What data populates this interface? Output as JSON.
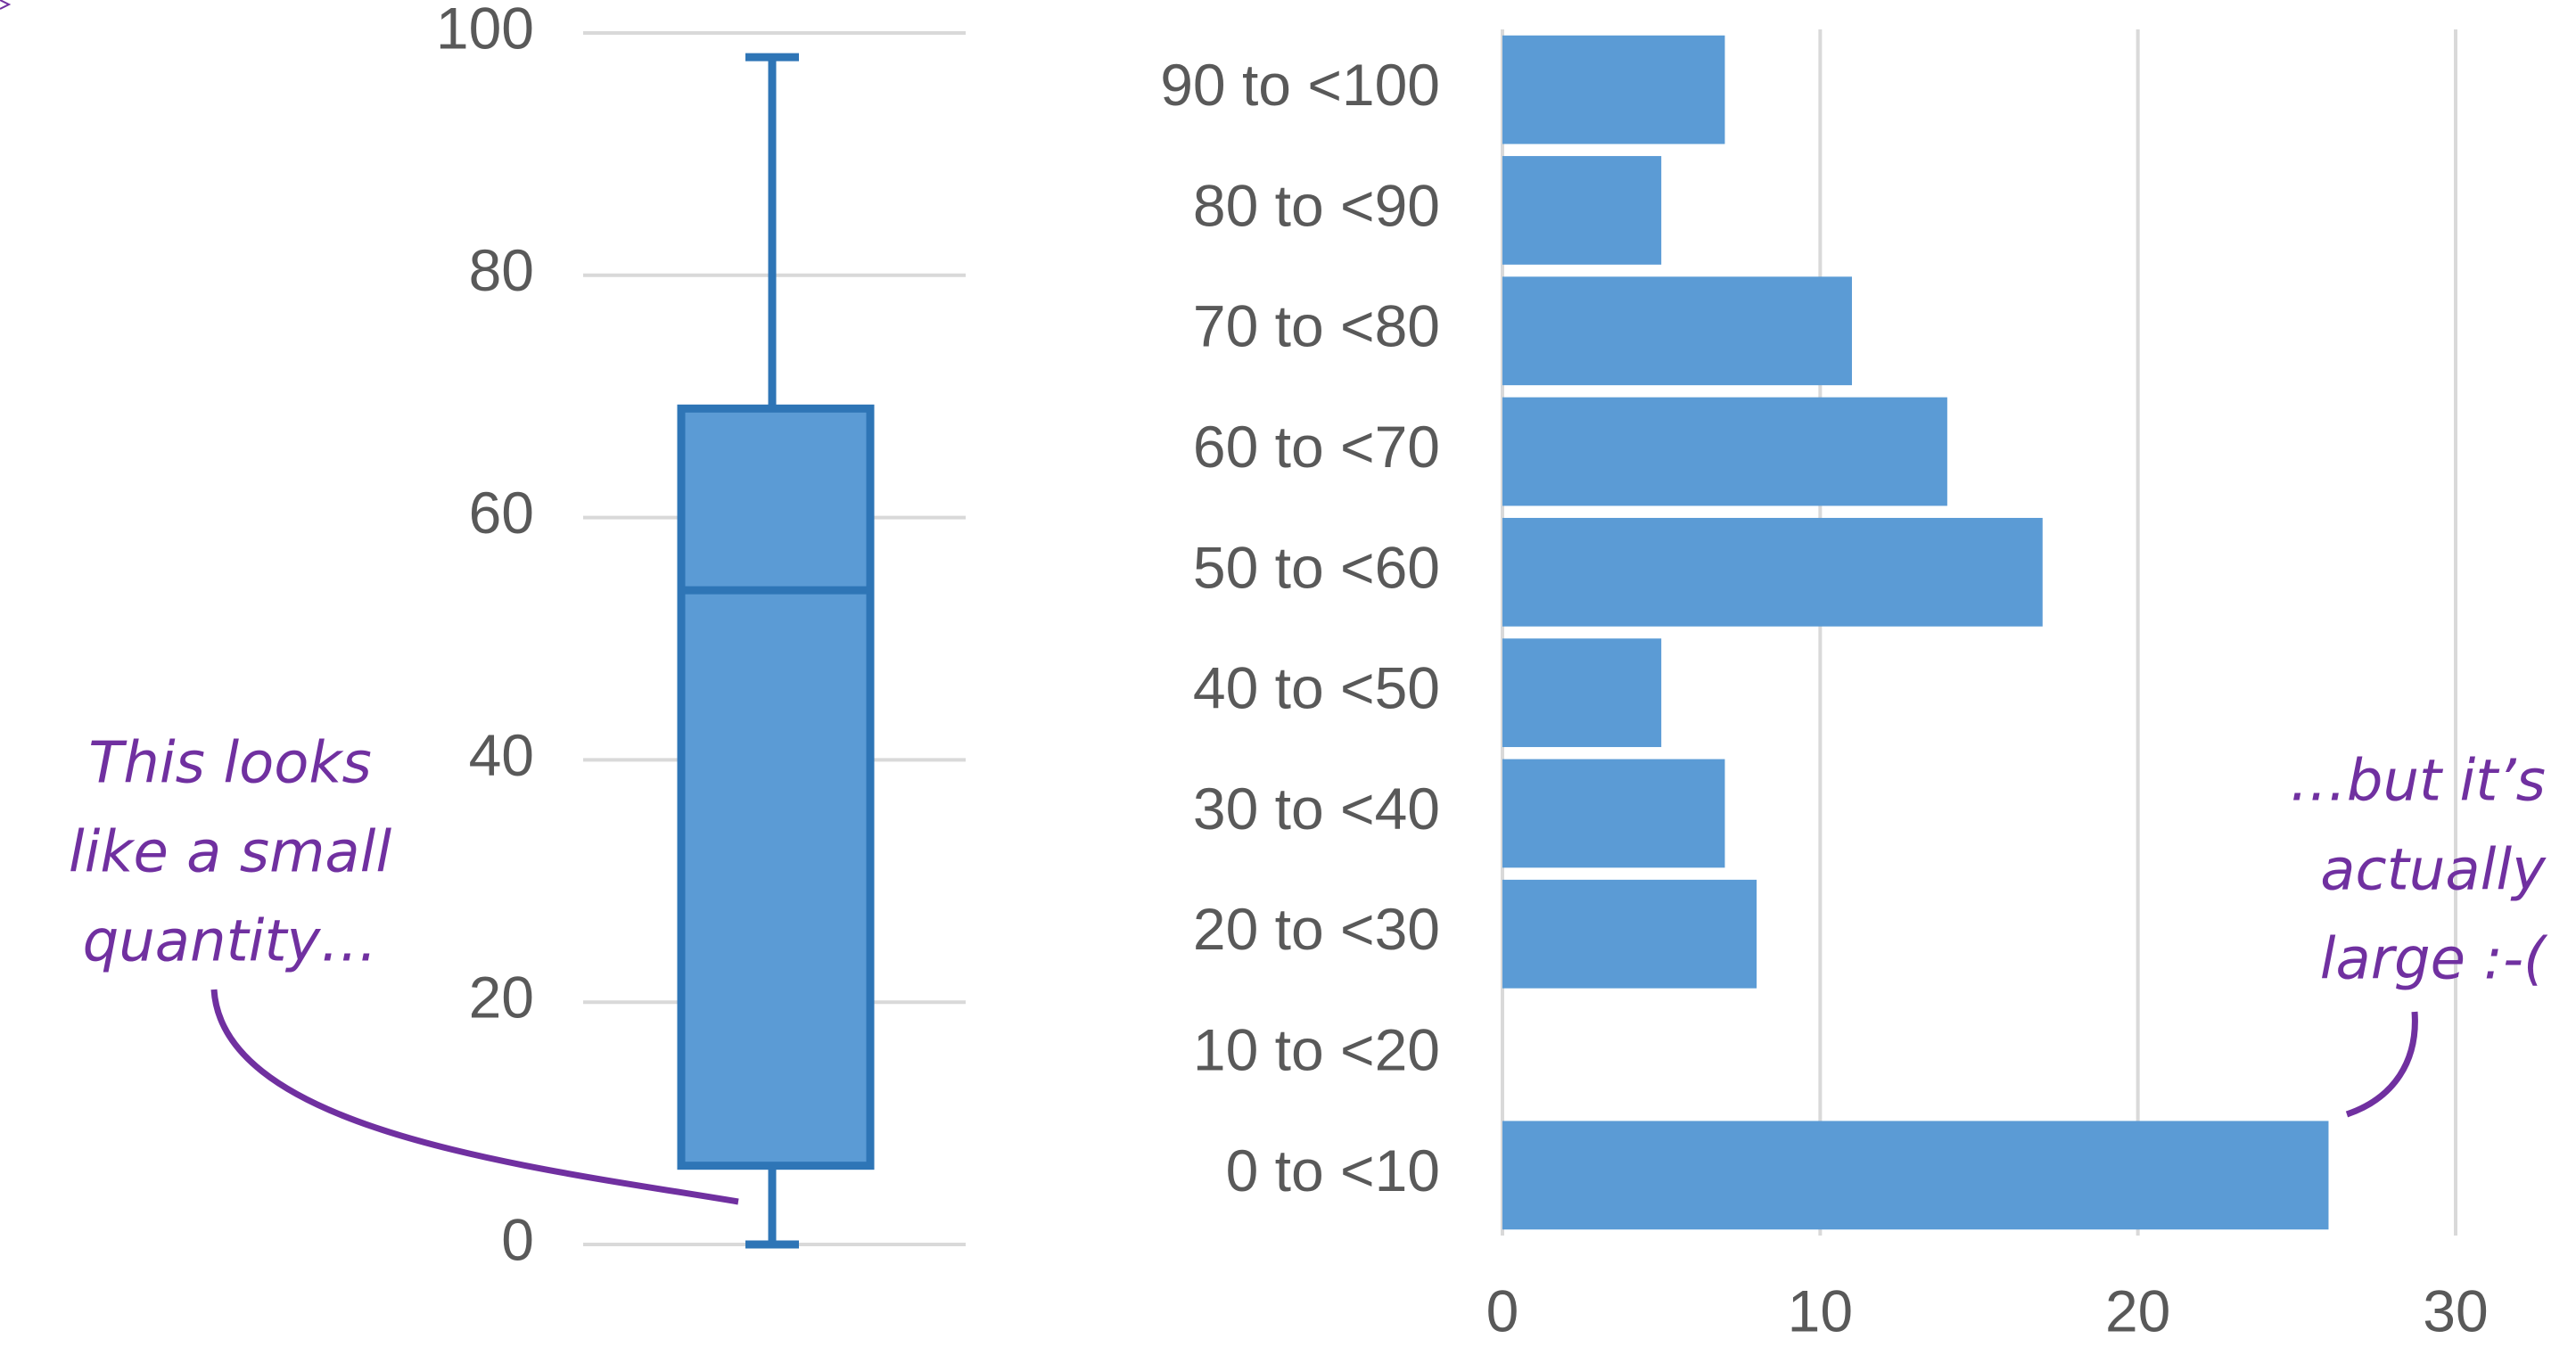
{
  "chart_data": [
    {
      "type": "box",
      "min": 0,
      "q1": 6.5,
      "median": 54,
      "q3": 69,
      "max": 98,
      "color": "#5b9bd5",
      "edge_color": "#2e75b6",
      "ylim": [
        0,
        100
      ],
      "yticks": [
        0,
        20,
        40,
        60,
        80,
        100
      ],
      "grid": true,
      "annotation": {
        "lines": [
          "This looks",
          "like a small",
          "quantity…"
        ],
        "color": "#7030a0"
      }
    },
    {
      "type": "hbar",
      "categories": [
        "0 to <10",
        "10 to <20",
        "20 to <30",
        "30 to <40",
        "40 to <50",
        "50 to <60",
        "60 to <70",
        "70 to <80",
        "80 to <90",
        "90 to <100"
      ],
      "values": [
        26,
        0,
        8,
        7,
        5,
        17,
        14,
        11,
        5,
        7
      ],
      "color": "#5b9bd5",
      "xlim": [
        0,
        30
      ],
      "xticks": [
        0,
        10,
        20,
        30
      ],
      "grid": true,
      "annotation": {
        "lines": [
          "…but it’s",
          "actually",
          "large :-("
        ],
        "color": "#7030a0"
      }
    }
  ]
}
